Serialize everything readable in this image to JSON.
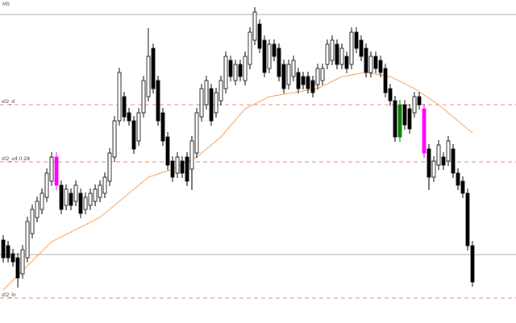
{
  "chart_data": {
    "type": "candlestick",
    "title": "M5",
    "xlim": [
      -0.67,
      106
    ],
    "ylim": [
      0,
      401
    ],
    "open": [
      103,
      96,
      86,
      81,
      61,
      81,
      111,
      131,
      141,
      156,
      176,
      206,
      171,
      146,
      161,
      151,
      161,
      141,
      146,
      151,
      156,
      161,
      176,
      206,
      251,
      281,
      261,
      251,
      226,
      261,
      281,
      341,
      301,
      261,
      231,
      201,
      186,
      201,
      206,
      191,
      211,
      256,
      271,
      291,
      261,
      276,
      291,
      326,
      301,
      321,
      301,
      321,
      351,
      371,
      351,
      316,
      346,
      341,
      321,
      296,
      306,
      311,
      306,
      306,
      301,
      296,
      301,
      321,
      326,
      346,
      321,
      331,
      321,
      361,
      351,
      341,
      311,
      331,
      326,
      316,
      291,
      276,
      231,
      271,
      266,
      261,
      281,
      266,
      216,
      181,
      196,
      206,
      201,
      216,
      186,
      176,
      161,
      96
    ],
    "high": [
      109,
      102,
      92,
      87,
      97,
      132,
      147,
      157,
      167,
      192,
      212,
      212,
      177,
      172,
      167,
      177,
      167,
      162,
      167,
      172,
      177,
      187,
      217,
      257,
      317,
      287,
      267,
      257,
      267,
      307,
      366,
      347,
      307,
      267,
      237,
      207,
      212,
      207,
      212,
      232,
      267,
      297,
      307,
      297,
      292,
      307,
      337,
      332,
      327,
      327,
      337,
      367,
      392,
      377,
      357,
      352,
      352,
      347,
      327,
      327,
      332,
      317,
      312,
      312,
      307,
      322,
      322,
      352,
      357,
      352,
      347,
      337,
      367,
      367,
      357,
      347,
      337,
      337,
      332,
      322,
      297,
      282,
      277,
      277,
      272,
      287,
      287,
      272,
      222,
      207,
      227,
      212,
      232,
      222,
      192,
      182,
      167,
      102
    ],
    "low": [
      75,
      75,
      70,
      44,
      55,
      75,
      105,
      125,
      135,
      150,
      170,
      165,
      135,
      140,
      140,
      145,
      130,
      135,
      140,
      145,
      150,
      155,
      170,
      200,
      245,
      250,
      245,
      210,
      220,
      255,
      275,
      285,
      245,
      220,
      190,
      175,
      180,
      180,
      170,
      165,
      205,
      250,
      265,
      245,
      255,
      270,
      285,
      300,
      295,
      300,
      295,
      315,
      345,
      335,
      305,
      310,
      325,
      300,
      285,
      290,
      300,
      285,
      290,
      285,
      280,
      290,
      295,
      315,
      320,
      315,
      315,
      310,
      315,
      335,
      325,
      305,
      305,
      310,
      305,
      280,
      270,
      225,
      225,
      240,
      235,
      255,
      265,
      205,
      165,
      175,
      190,
      190,
      195,
      180,
      165,
      155,
      90,
      45
    ],
    "close": [
      81,
      81,
      76,
      56,
      91,
      126,
      141,
      151,
      161,
      186,
      206,
      171,
      141,
      166,
      146,
      171,
      136,
      156,
      161,
      166,
      171,
      181,
      211,
      251,
      311,
      256,
      251,
      216,
      261,
      301,
      331,
      291,
      251,
      226,
      196,
      181,
      206,
      186,
      176,
      226,
      261,
      291,
      301,
      251,
      286,
      301,
      331,
      306,
      321,
      306,
      331,
      361,
      386,
      341,
      311,
      346,
      331,
      306,
      291,
      321,
      326,
      291,
      296,
      291,
      286,
      316,
      316,
      346,
      351,
      321,
      341,
      316,
      361,
      341,
      331,
      311,
      331,
      316,
      311,
      286,
      276,
      231,
      271,
      246,
      241,
      281,
      271,
      211,
      181,
      201,
      221,
      196,
      226,
      186,
      171,
      161,
      96,
      51
    ],
    "colors": [
      null,
      null,
      null,
      null,
      null,
      null,
      null,
      null,
      null,
      null,
      null,
      "#ff00ff",
      null,
      null,
      null,
      null,
      null,
      null,
      null,
      null,
      null,
      null,
      null,
      null,
      null,
      null,
      null,
      null,
      null,
      null,
      null,
      null,
      null,
      null,
      null,
      null,
      null,
      null,
      null,
      null,
      null,
      null,
      null,
      null,
      null,
      null,
      null,
      null,
      null,
      null,
      null,
      null,
      null,
      null,
      null,
      null,
      null,
      null,
      null,
      null,
      null,
      null,
      null,
      null,
      null,
      null,
      null,
      null,
      null,
      null,
      null,
      null,
      null,
      null,
      null,
      null,
      null,
      null,
      null,
      null,
      null,
      null,
      "#008000",
      null,
      null,
      null,
      null,
      "#ff00ff",
      null,
      null,
      null,
      null,
      null,
      null,
      null,
      null,
      null,
      null
    ],
    "bull_color": "#ffffff",
    "bear_color": "#000000",
    "ma": {
      "color": "#f4a460",
      "x": [
        0,
        10,
        20,
        25,
        30,
        35,
        40,
        45,
        50,
        55,
        60,
        65,
        70,
        75,
        80,
        85,
        90,
        95,
        97
      ],
      "values": [
        41,
        101,
        131,
        156,
        181,
        191,
        206,
        231,
        266,
        281,
        286,
        291,
        306,
        311,
        306,
        291,
        271,
        246,
        236
      ]
    },
    "levels": [
      {
        "value": 383,
        "style": "solid",
        "color": "#aaaaaa"
      },
      {
        "value": 271,
        "style": "dashed",
        "color": "#e09080",
        "label": "st2_d"
      },
      {
        "value": 200,
        "style": "dashed",
        "color": "#e09080",
        "label": "st2_vd 0.28"
      },
      {
        "value": 85,
        "style": "solid",
        "color": "#aaaaaa"
      },
      {
        "value": 31,
        "style": "dashed",
        "color": "#e09080",
        "label": "st2_lo"
      }
    ]
  }
}
